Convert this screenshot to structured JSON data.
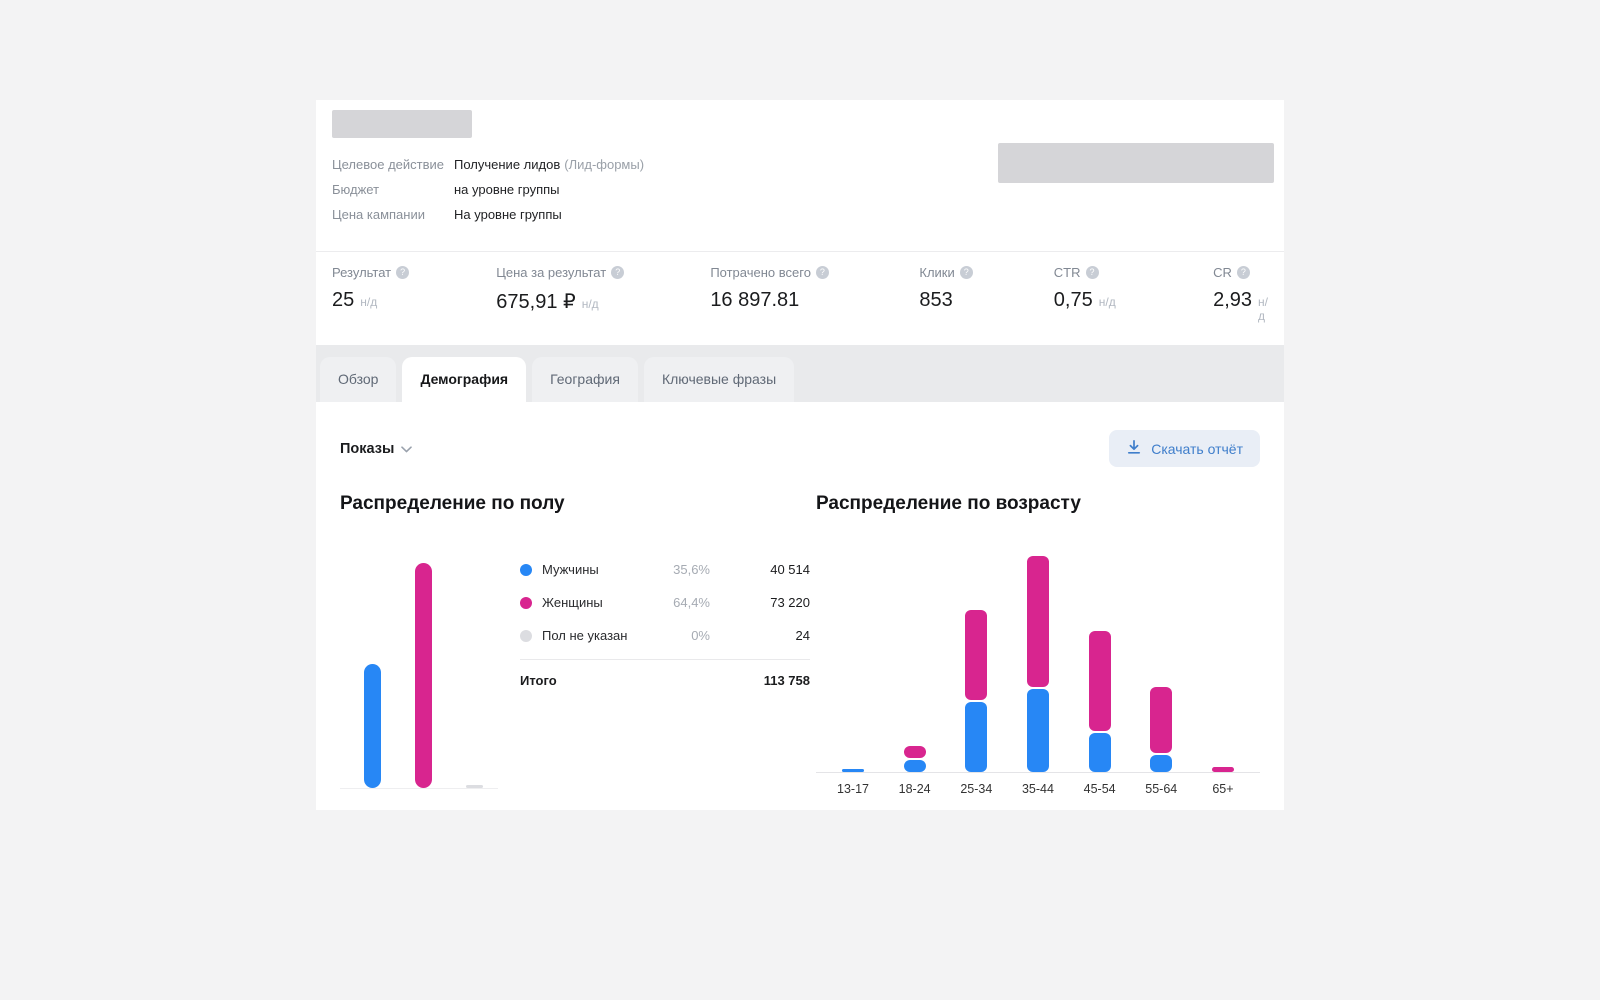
{
  "header": {
    "rows": [
      {
        "label": "Целевое действие",
        "value": "Получение лидов",
        "note": "(Лид-формы)"
      },
      {
        "label": "Бюджет",
        "value": "на уровне группы"
      },
      {
        "label": "Цена кампании",
        "value": "На уровне группы"
      }
    ]
  },
  "stats": [
    {
      "label": "Результат",
      "value": "25",
      "suffix": "н/д"
    },
    {
      "label": "Цена за результат",
      "value": "675,91 ₽",
      "suffix": "н/д"
    },
    {
      "label": "Потрачено всего",
      "value": "16 897.81",
      "suffix": ""
    },
    {
      "label": "Клики",
      "value": "853",
      "suffix": ""
    },
    {
      "label": "CTR",
      "value": "0,75",
      "suffix": "н/д"
    },
    {
      "label": "CR",
      "value": "2,93",
      "suffix": "н/д"
    }
  ],
  "tabs": [
    {
      "label": "Обзор",
      "active": false
    },
    {
      "label": "Демография",
      "active": true
    },
    {
      "label": "География",
      "active": false
    },
    {
      "label": "Ключевые фразы",
      "active": false
    }
  ],
  "toolbar": {
    "metric_selector": "Показы",
    "download_label": "Скачать отчёт"
  },
  "icons": {
    "help": "?",
    "chevron_down": "chevron-down",
    "download": "download-arrow"
  },
  "colors": {
    "men": "#2787f5",
    "women": "#d8258f",
    "unknown": "#dcdde1",
    "accent_link": "#3f7ecb"
  },
  "chart_data": [
    {
      "id": "gender",
      "type": "bar",
      "title": "Распределение по полу",
      "metric": "Показы",
      "categories": [
        "Мужчины",
        "Женщины",
        "Пол не указан"
      ],
      "values": [
        40514,
        73220,
        24
      ],
      "value_labels": [
        "40 514",
        "73 220",
        "24"
      ],
      "percent_labels": [
        "35,6%",
        "64,4%",
        "0%"
      ],
      "colors": [
        "#2787f5",
        "#d8258f",
        "#dcdde1"
      ],
      "total_label": "Итого",
      "total_value": 113758,
      "total_value_label": "113 758"
    },
    {
      "id": "age",
      "type": "stacked-bar",
      "title": "Распределение по возрасту",
      "metric": "Показы",
      "categories": [
        "13-17",
        "18-24",
        "25-34",
        "35-44",
        "45-54",
        "55-64",
        "65+"
      ],
      "series": [
        {
          "name": "Мужчины",
          "color": "#2787f5",
          "values": [
            500,
            2100,
            12700,
            15000,
            7100,
            3100,
            0
          ]
        },
        {
          "name": "Женщины",
          "color": "#d8258f",
          "values": [
            0,
            2100,
            16300,
            23800,
            18200,
            11900,
            900
          ]
        }
      ]
    }
  ]
}
